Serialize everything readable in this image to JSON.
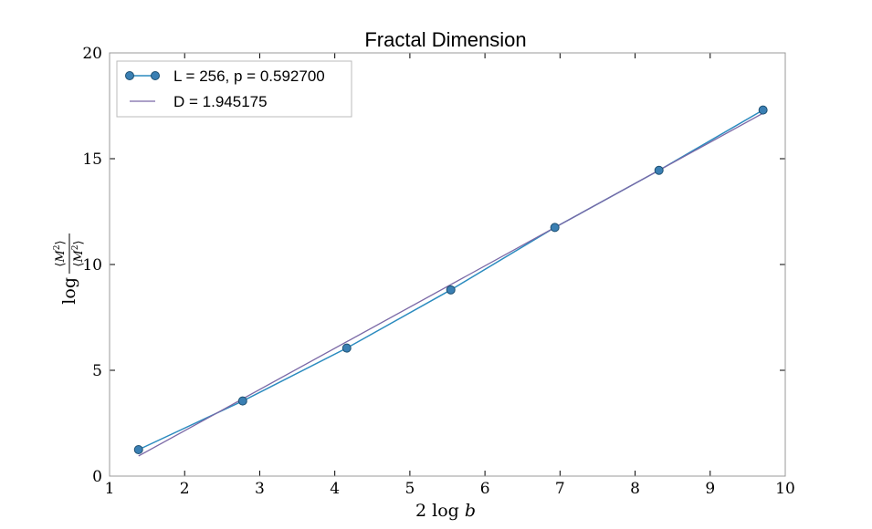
{
  "chart_data": {
    "type": "line",
    "title": "Fractal Dimension",
    "xlabel": "2 log b",
    "ylabel": "log ⟨M²⟩/⟨M²⟩",
    "xlim": [
      1,
      10
    ],
    "ylim": [
      0,
      20
    ],
    "x_ticks": [
      "1",
      "2",
      "3",
      "4",
      "5",
      "6",
      "7",
      "8",
      "9",
      "10"
    ],
    "y_ticks": [
      "0",
      "5",
      "10",
      "15",
      "20"
    ],
    "grid": false,
    "legend_position": "top-left",
    "series": [
      {
        "name": "L = 256, p = 0.592700",
        "style": "line-with-circle-markers",
        "color": "#2b8bbf",
        "marker_color": "#3a7fb3",
        "x": [
          1.386,
          2.773,
          4.159,
          5.545,
          6.931,
          8.318,
          9.704
        ],
        "y": [
          1.25,
          3.55,
          6.05,
          8.8,
          11.75,
          14.45,
          17.3
        ]
      },
      {
        "name": "D = 1.945175",
        "style": "line",
        "color": "#7a68a6",
        "x": [
          1.386,
          9.704
        ],
        "y": [
          0.95,
          17.15
        ]
      }
    ]
  }
}
